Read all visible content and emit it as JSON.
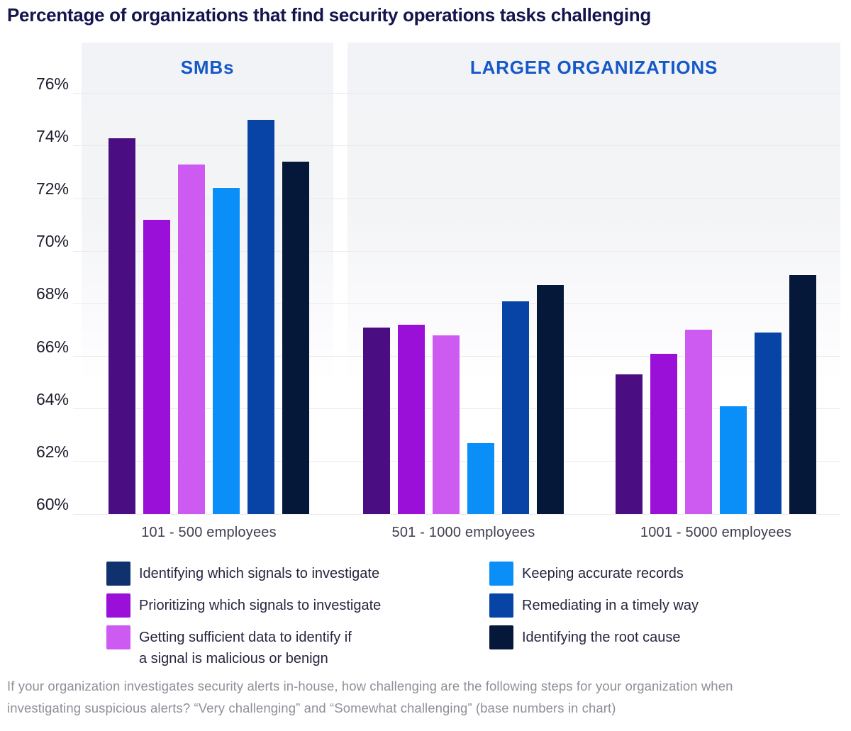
{
  "title": "Percentage of organizations that find security operations tasks challenging",
  "panels": [
    {
      "label": "SMBs"
    },
    {
      "label": "LARGER ORGANIZATIONS"
    }
  ],
  "chart_data": {
    "type": "bar",
    "title": "Percentage of organizations that find security operations tasks challenging",
    "categories": [
      "101 - 500 employees",
      "501 - 1000 employees",
      "1001 - 5000 employees"
    ],
    "series": [
      {
        "name": "Identifying which signals to investigate",
        "color": "#4b0d82",
        "legend_color": "#0f326f",
        "values": [
          74.3,
          67.1,
          65.3
        ]
      },
      {
        "name": "Prioritizing which signals to investigate",
        "color": "#9a10d8",
        "values": [
          71.2,
          67.2,
          66.1
        ]
      },
      {
        "name": "Getting sufficient data to identify if\na signal is malicious or benign",
        "color": "#cd5bf2",
        "values": [
          73.3,
          66.8,
          67.0
        ]
      },
      {
        "name": "Keeping accurate records",
        "color": "#0a8ef8",
        "values": [
          72.4,
          62.7,
          64.1
        ]
      },
      {
        "name": "Remediating in a timely way",
        "color": "#0843a6",
        "values": [
          75.0,
          68.1,
          66.9
        ]
      },
      {
        "name": "Identifying the root cause",
        "color": "#05183a",
        "values": [
          73.4,
          68.7,
          69.1
        ]
      }
    ],
    "ylim": [
      60,
      76
    ],
    "ytick_step": 2,
    "ytick_suffix": "%",
    "grid": true,
    "legend_position": "bottom",
    "panel_groups": [
      {
        "panel": "SMBs",
        "categories": [
          "101 - 500 employees"
        ]
      },
      {
        "panel": "LARGER ORGANIZATIONS",
        "categories": [
          "501 - 1000 employees",
          "1001 - 5000 employees"
        ]
      }
    ]
  },
  "footnote": {
    "line1": "If your organization investigates security alerts in-house, how challenging are the following steps for your organization when",
    "line2": "investigating suspicious alerts? “Very challenging” and “Somewhat challenging” (base numbers in chart)"
  }
}
